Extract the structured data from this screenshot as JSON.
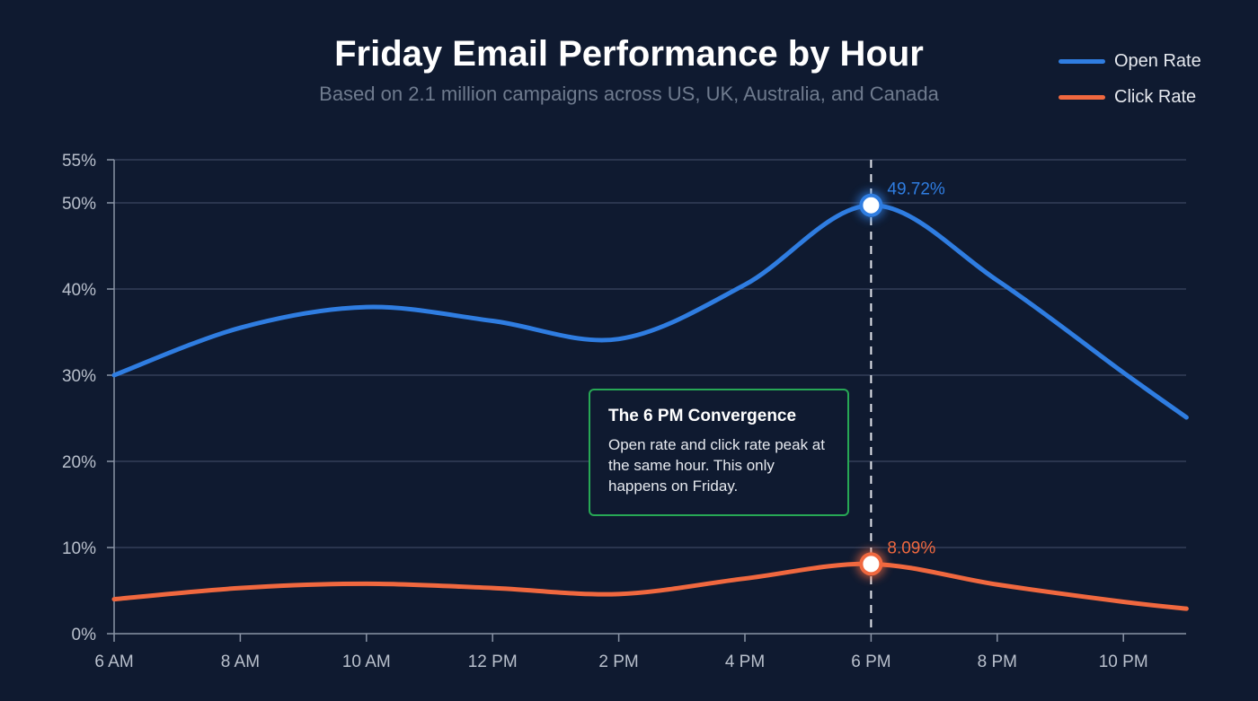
{
  "chart_data": {
    "type": "line",
    "title": "Friday Email Performance by Hour",
    "subtitle": "Based on 2.1 million campaigns across US, UK, Australia, and Canada",
    "x_hours": [
      6,
      8,
      10,
      12,
      14,
      16,
      18,
      20,
      22,
      23
    ],
    "x_tick_labels": [
      "6 AM",
      "8 AM",
      "10 AM",
      "12 PM",
      "2 PM",
      "4 PM",
      "6 PM",
      "8 PM",
      "10 PM"
    ],
    "x_tick_hours": [
      6,
      8,
      10,
      12,
      14,
      16,
      18,
      20,
      22
    ],
    "xlim": [
      6,
      23
    ],
    "ylim": [
      0,
      55
    ],
    "y_ticks": [
      0,
      10,
      20,
      30,
      40,
      50,
      55
    ],
    "y_tick_labels": [
      "0%",
      "10%",
      "20%",
      "30%",
      "40%",
      "50%",
      "55%"
    ],
    "grid": true,
    "legend_position": "top-right",
    "series": [
      {
        "name": "Open Rate",
        "color": "#2f7de1",
        "values": [
          30,
          35.5,
          37.9,
          36.3,
          34.2,
          40.5,
          49.72,
          41,
          30.3,
          25.1
        ]
      },
      {
        "name": "Click Rate",
        "color": "#f0683f",
        "values": [
          4.0,
          5.3,
          5.8,
          5.3,
          4.6,
          6.4,
          8.09,
          5.7,
          3.7,
          2.9
        ]
      }
    ],
    "annotations": {
      "peak_hour": 18,
      "open_peak_label": "49.72%",
      "click_peak_label": "8.09%",
      "callout_title": "The 6 PM Convergence",
      "callout_body": "Open rate and click rate peak at the same hour. This only happens on Friday.",
      "callout_color": "#27a855"
    }
  }
}
